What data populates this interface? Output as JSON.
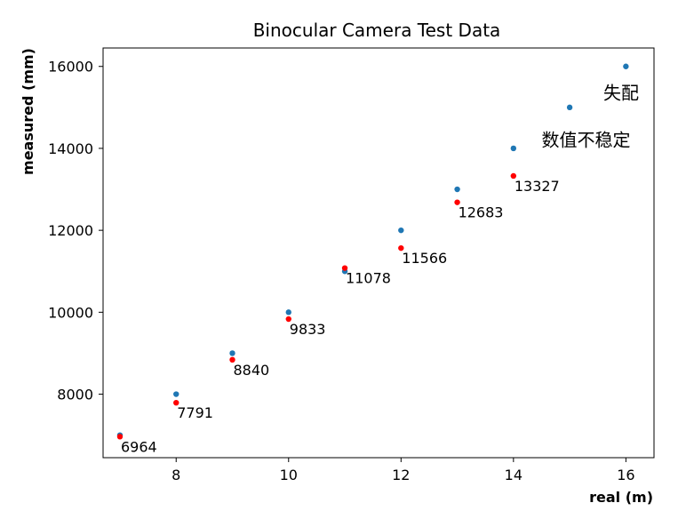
{
  "chart_data": {
    "type": "scatter",
    "title": "Binocular Camera Test Data",
    "xlabel": "real (m)",
    "ylabel": "measured (mm)",
    "xlim": [
      6.7,
      16.5
    ],
    "ylim": [
      6450,
      16450
    ],
    "x_ticks": [
      8,
      10,
      12,
      14,
      16
    ],
    "y_ticks": [
      8000,
      10000,
      12000,
      14000,
      16000
    ],
    "grid": false,
    "series": [
      {
        "color": "#1f77b4",
        "x": [
          7,
          8,
          9,
          10,
          11,
          12,
          13,
          14,
          15,
          16
        ],
        "y": [
          7000,
          8000,
          9000,
          10000,
          11000,
          12000,
          13000,
          14000,
          15000,
          16000
        ]
      },
      {
        "color": "#ff0000",
        "x": [
          7,
          8,
          9,
          10,
          11,
          12,
          13,
          14
        ],
        "y": [
          6964,
          7791,
          8840,
          9833,
          11078,
          11566,
          12683,
          13327
        ],
        "labels": [
          "6964",
          "7791",
          "8840",
          "9833",
          "11078",
          "11566",
          "12683",
          "13327"
        ]
      }
    ],
    "annotations": [
      {
        "text": "失配",
        "x": 15.6,
        "y": 15350
      },
      {
        "text": "数值不稳定",
        "x": 14.5,
        "y": 14200
      }
    ]
  }
}
